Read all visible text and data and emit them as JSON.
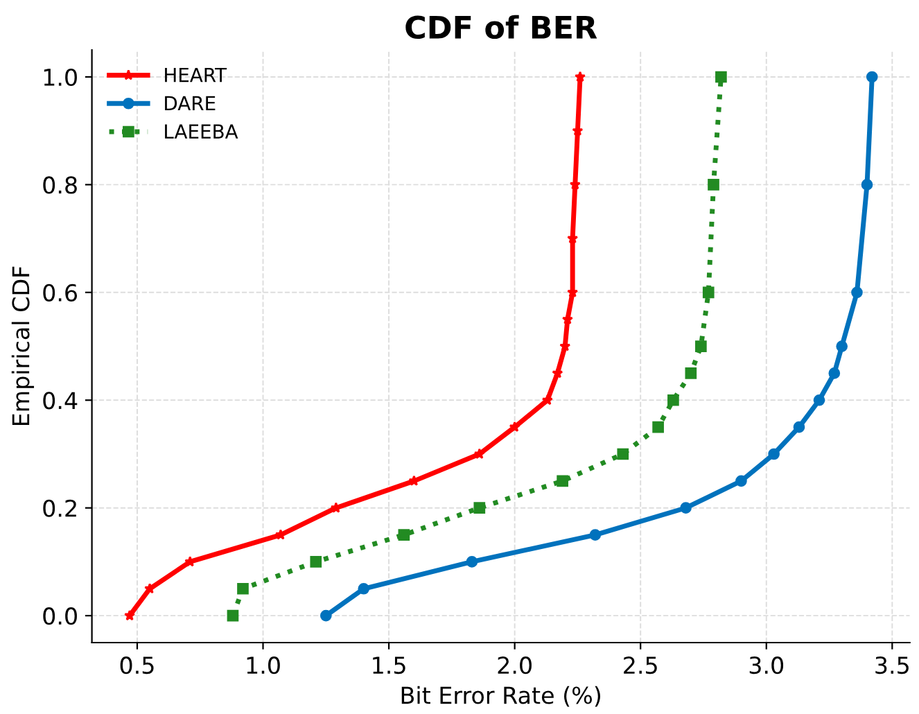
{
  "chart_data": {
    "type": "line",
    "title": "CDF of BER",
    "xlabel": "Bit Error Rate (%)",
    "ylabel": "Empirical CDF",
    "xlim": [
      0.32,
      3.57
    ],
    "ylim": [
      -0.05,
      1.05
    ],
    "xticks": [
      0.5,
      {
        "value": 1,
        "label": "1.0"
      },
      1.5,
      {
        "value": 2,
        "label": "2.0"
      },
      2.5,
      {
        "value": 3,
        "label": "3.0"
      },
      3.5
    ],
    "yticks": [
      {
        "value": 0,
        "label": "0.0"
      },
      0.2,
      0.4,
      0.6,
      0.8,
      {
        "value": 1,
        "label": "1.0"
      }
    ],
    "grid": true,
    "legend": "top left",
    "series": [
      {
        "name": "HEART",
        "color": "#ff0000",
        "marker": "star",
        "line_style": "solid",
        "x": [
          0.47,
          0.55,
          0.71,
          1.07,
          1.29,
          1.6,
          1.86,
          2.0,
          2.13,
          2.17,
          2.2,
          2.21,
          2.23,
          2.23,
          2.24,
          2.25,
          2.26
        ],
        "values": [
          0.0,
          0.05,
          0.1,
          0.15,
          0.2,
          0.25,
          0.3,
          0.35,
          0.4,
          0.45,
          0.5,
          0.55,
          0.6,
          0.7,
          0.8,
          0.9,
          1.0
        ]
      },
      {
        "name": "DARE",
        "color": "#0072bd",
        "marker": "circle",
        "line_style": "solid",
        "x": [
          1.25,
          1.4,
          1.83,
          2.32,
          2.68,
          2.9,
          3.03,
          3.13,
          3.21,
          3.27,
          3.3,
          3.36,
          3.4,
          3.42
        ],
        "values": [
          0.0,
          0.05,
          0.1,
          0.15,
          0.2,
          0.25,
          0.3,
          0.35,
          0.4,
          0.45,
          0.5,
          0.6,
          0.8,
          1.0
        ]
      },
      {
        "name": "LAEEBA",
        "color": "#228b22",
        "marker": "square",
        "line_style": "dotted",
        "x": [
          0.88,
          0.92,
          1.21,
          1.56,
          1.86,
          2.19,
          2.43,
          2.57,
          2.63,
          2.7,
          2.74,
          2.77,
          2.79,
          2.82
        ],
        "values": [
          0.0,
          0.05,
          0.1,
          0.15,
          0.2,
          0.25,
          0.3,
          0.35,
          0.4,
          0.45,
          0.5,
          0.6,
          0.8,
          1.0
        ]
      }
    ]
  }
}
